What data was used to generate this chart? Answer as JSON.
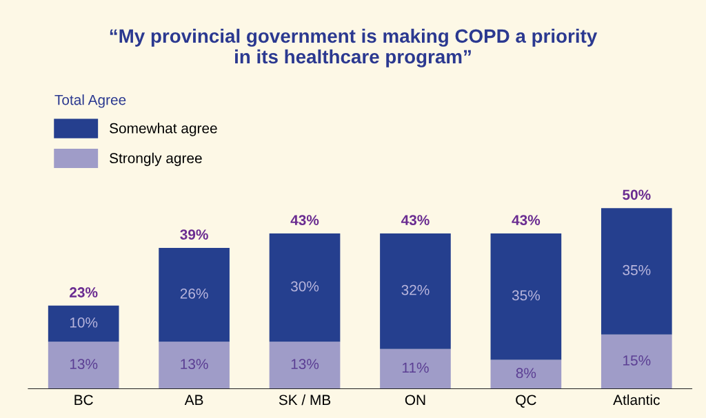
{
  "chart_data": {
    "type": "bar",
    "stacked": true,
    "title": "“My provincial government is making COPD a priority\nin its healthcare program”",
    "legend_title": "Total Agree",
    "legend": "top left",
    "categories": [
      "BC",
      "AB",
      "SK / MB",
      "ON",
      "QC",
      "Atlantic"
    ],
    "series": [
      {
        "name": "Strongly agree",
        "color": "#9f9cc8",
        "values": [
          13,
          13,
          13,
          11,
          8,
          15
        ],
        "value_labels": [
          "13%",
          "13%",
          "13%",
          "11%",
          "8%",
          "15%"
        ]
      },
      {
        "name": "Somewhat agree",
        "color": "#253f8e",
        "values": [
          10,
          26,
          30,
          32,
          35,
          35
        ],
        "value_labels": [
          "10%",
          "26%",
          "30%",
          "32%",
          "35%",
          "35%"
        ]
      }
    ],
    "totals": [
      "23%",
      "39%",
      "43%",
      "43%",
      "43%",
      "50%"
    ],
    "grid": false
  }
}
